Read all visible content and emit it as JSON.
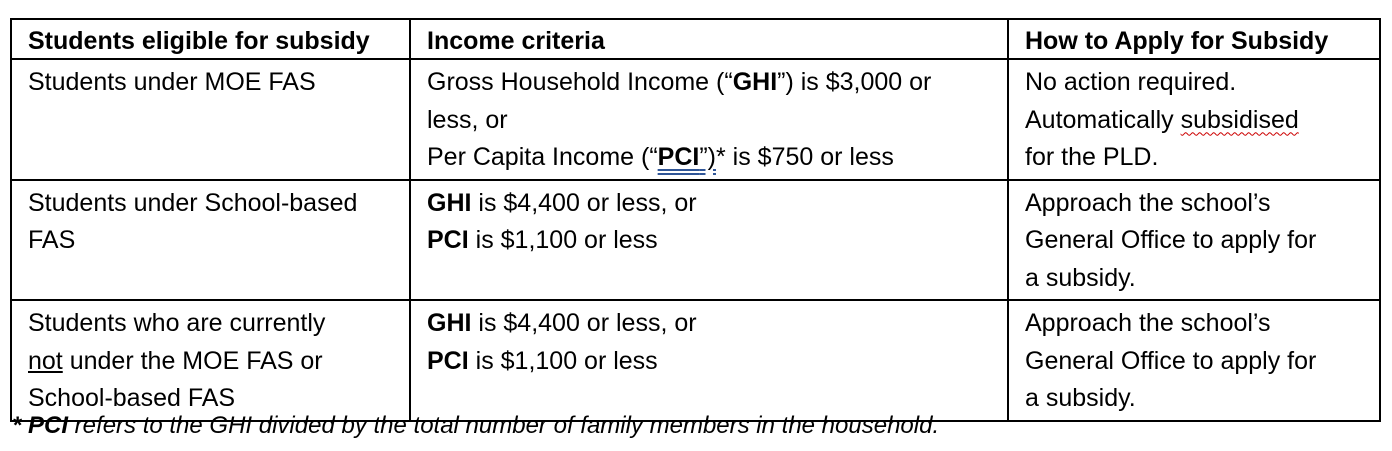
{
  "headers": {
    "col1": "Students eligible for subsidy",
    "col2": "Income criteria",
    "col3": "How to Apply for Subsidy"
  },
  "rows": [
    {
      "eligible": {
        "line1": "Students under MOE FAS"
      },
      "income": {
        "l1_pre": "Gross Household Income (“",
        "l1_bold": "GHI",
        "l1_post": "”) is $3,000 or",
        "l2": "less, or",
        "l3_pre": "Per Capita Income (“",
        "l3_bold": "PCI",
        "l3_mid": "”)",
        "l3_post": "* is $750 or less"
      },
      "apply": {
        "line1": "No action required.",
        "line2_pre": "Automatically ",
        "line2_wavy": "subsidised",
        "line3": "for the PLD."
      }
    },
    {
      "eligible": {
        "line1": "Students under School-based",
        "line2": "FAS"
      },
      "income": {
        "l1_bold": "GHI",
        "l1_post": " is $4,400 or less, or",
        "l2_bold": "PCI",
        "l2_post": " is $1,100 or less"
      },
      "apply": {
        "line1": "Approach the school’s",
        "line2": "General Office to apply for",
        "line3": "a subsidy."
      }
    },
    {
      "eligible": {
        "line1": "Students who are currently",
        "line2_ul": "not",
        "line2_post": " under the MOE FAS or",
        "line3": "School-based FAS"
      },
      "income": {
        "l1_bold": "GHI",
        "l1_post": " is $4,400 or less, or",
        "l2_bold": "PCI",
        "l2_post": " is $1,100 or less"
      },
      "apply": {
        "line1": "Approach the school’s",
        "line2": "General Office to apply for",
        "line3": "a subsidy."
      }
    }
  ],
  "footnote": {
    "bold": "* PCI",
    "rest": " refers to the GHI divided by the total number of family members in the household."
  }
}
